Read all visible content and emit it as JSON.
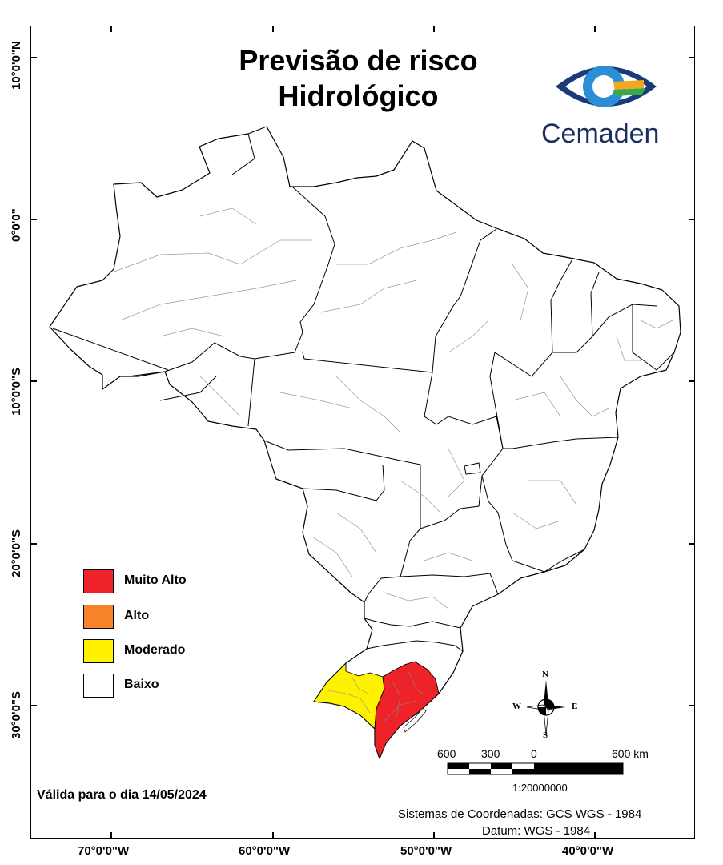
{
  "title": [
    "Previsão de risco",
    "Hidrológico"
  ],
  "logo": {
    "text": "Cemaden",
    "icon": "cemaden-eye-logo"
  },
  "latitude_labels": [
    "10°0'0\"N",
    "0°0'0\"",
    "10°0'0\"S",
    "20°0'0\"S",
    "30°0'0\"S"
  ],
  "longitude_labels": [
    "70°0'0\"W",
    "60°0'0\"W",
    "50°0'0\"W",
    "40°0'0\"W"
  ],
  "legend": [
    {
      "label": "Muito Alto",
      "color": "#ee2229"
    },
    {
      "label": "Alto",
      "color": "#f7822a"
    },
    {
      "label": "Moderado",
      "color": "#fef200"
    },
    {
      "label": "Baixo",
      "color": "#ffffff"
    }
  ],
  "risk_areas": [
    {
      "region": "Rio Grande do Sul - oeste",
      "level": "Moderado"
    },
    {
      "region": "Rio Grande do Sul - centro e leste",
      "level": "Muito Alto"
    },
    {
      "region": "demais áreas",
      "level": "Baixo"
    }
  ],
  "validity": "Válida para o dia 14/05/2024",
  "compass": {
    "n": "N",
    "s": "S",
    "e": "E",
    "w": "W"
  },
  "scale_bar": {
    "labels": [
      "600",
      "300",
      "0",
      "600 km"
    ],
    "ratio": "1:20000000"
  },
  "footer": {
    "coordinate_system": "Sistemas de Coordenadas: GCS WGS - 1984",
    "datum": "Datum: WGS - 1984"
  }
}
